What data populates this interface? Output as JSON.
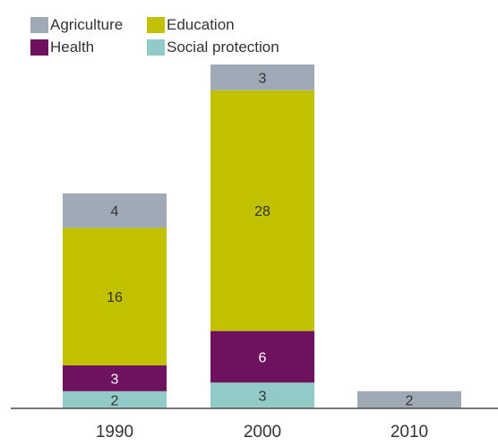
{
  "chart_data": {
    "type": "bar",
    "stacked": true,
    "title": "",
    "xlabel": "",
    "ylabel": "",
    "categories": [
      "1990",
      "2000",
      "2010"
    ],
    "series": [
      {
        "name": "Social protection",
        "values": [
          2,
          3,
          0
        ],
        "color": "#92cac8",
        "label_color": "#333333"
      },
      {
        "name": "Health",
        "values": [
          3,
          6,
          0
        ],
        "color": "#6e1260",
        "label_color": "#ffffff"
      },
      {
        "name": "Education",
        "values": [
          16,
          28,
          0
        ],
        "color": "#c2c100",
        "label_color": "#333333"
      },
      {
        "name": "Agriculture",
        "values": [
          4,
          3,
          2
        ],
        "color": "#a0aab7",
        "label_color": "#333333"
      }
    ],
    "legend": {
      "placement": "top-left",
      "order": [
        "Agriculture",
        "Education",
        "Health",
        "Social protection"
      ]
    },
    "grid": false,
    "y_axis_visible": false
  }
}
